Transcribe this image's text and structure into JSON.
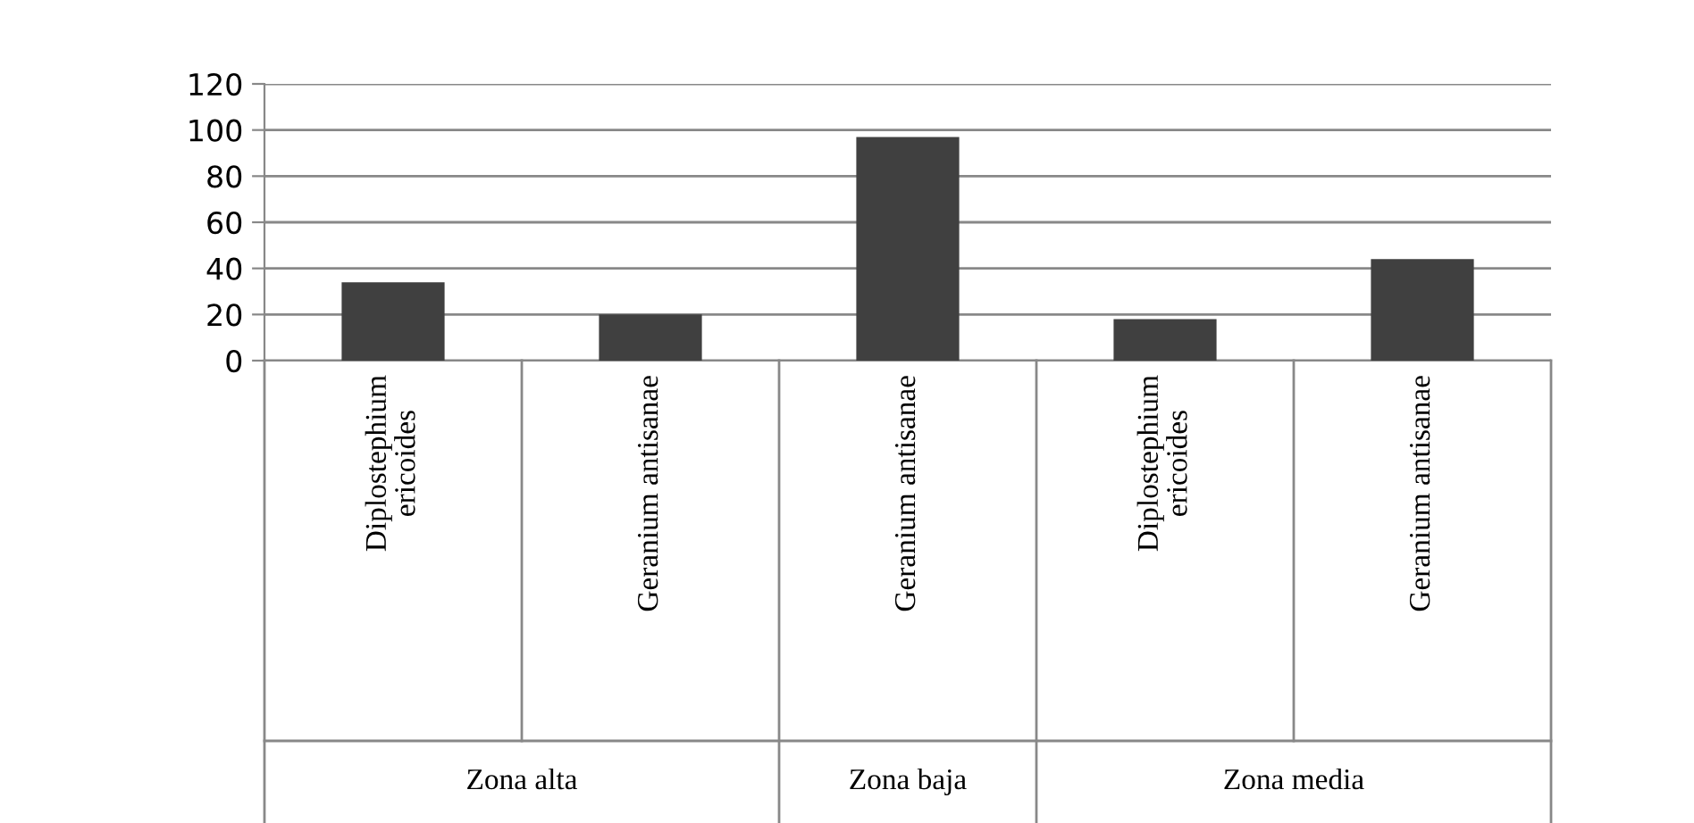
{
  "chart_data": {
    "type": "bar",
    "categories": [
      "Diplostephium\nericoides",
      "Geranium antisanae",
      "Geranium antisanae",
      "Diplostephium\nericoides",
      "Geranium antisanae"
    ],
    "values": [
      34,
      20,
      97,
      18,
      44
    ],
    "color": "#404040",
    "ylim": [
      0,
      120
    ],
    "yticks": [
      0,
      20,
      40,
      60,
      80,
      100,
      120
    ],
    "grid": "y",
    "annotations": [
      "Zona alta",
      "Zona baja",
      "Zona media"
    ]
  }
}
